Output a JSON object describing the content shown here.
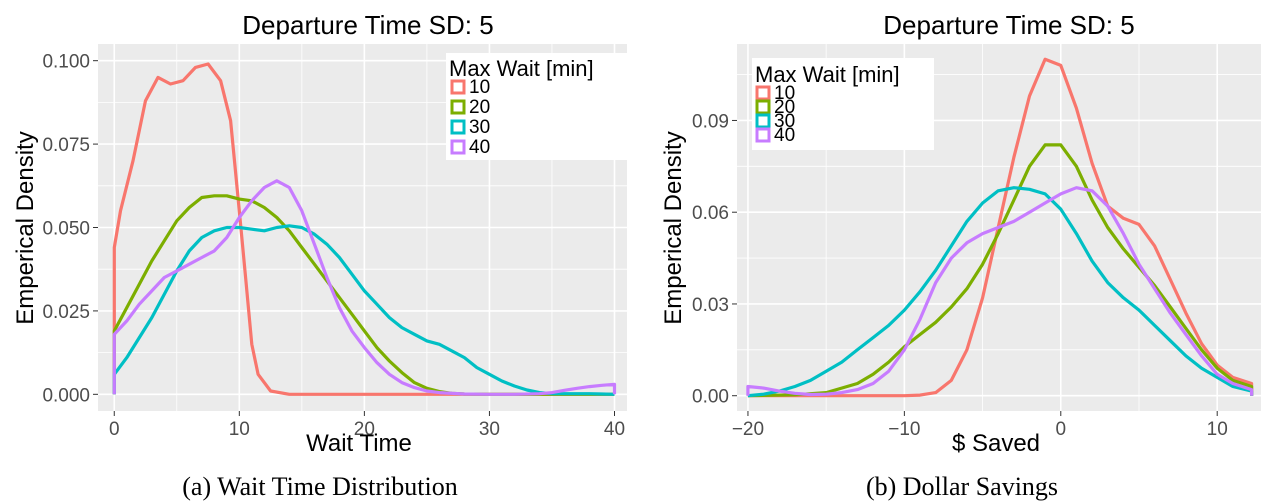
{
  "colors": {
    "10": "#F8766D",
    "20": "#7CAE00",
    "30": "#00BFC4",
    "40": "#C77CFF",
    "panel": "#EBEBEB",
    "grid": "#FFFFFF"
  },
  "chart_data": [
    {
      "type": "line",
      "title": "Departure Time SD: 5",
      "xlabel": "Wait Time",
      "ylabel": "Emperical Density",
      "caption": "(a) Wait Time Distribution",
      "xlim": [
        -1.3,
        41.0
      ],
      "ylim": [
        -0.005,
        0.105
      ],
      "x_ticks": [
        0,
        10,
        20,
        30,
        40
      ],
      "x_tick_labels": [
        "0",
        "10",
        "20",
        "30",
        "40"
      ],
      "y_ticks": [
        0,
        0.025,
        0.05,
        0.075,
        0.1
      ],
      "y_tick_labels": [
        "0.000",
        "0.025",
        "0.050",
        "0.075",
        "0.100"
      ],
      "grid": true,
      "legend": {
        "title": "Max Wait [min]",
        "position": "top-right",
        "labels": [
          "10",
          "20",
          "30",
          "40"
        ]
      },
      "series": [
        {
          "name": "10",
          "x": [
            0,
            0,
            0.5,
            1.5,
            2.5,
            3.5,
            4.5,
            5.5,
            6.5,
            7.5,
            8.5,
            9.3,
            10,
            10.5,
            11,
            11.5,
            12.5,
            14,
            40,
            40
          ],
          "y": [
            0,
            0.044,
            0.055,
            0.07,
            0.088,
            0.095,
            0.093,
            0.094,
            0.098,
            0.099,
            0.094,
            0.082,
            0.055,
            0.035,
            0.015,
            0.006,
            0.001,
            0.0,
            0.0,
            0
          ]
        },
        {
          "name": "20",
          "x": [
            0,
            0,
            1,
            2,
            3,
            4,
            5,
            6,
            7,
            8,
            9,
            10,
            11,
            12,
            13,
            14,
            15,
            16,
            17,
            18,
            19,
            20,
            21,
            22,
            23,
            24,
            25,
            26,
            27,
            28,
            30,
            33,
            40,
            40
          ],
          "y": [
            0,
            0.019,
            0.026,
            0.033,
            0.04,
            0.046,
            0.052,
            0.056,
            0.059,
            0.0595,
            0.0595,
            0.0585,
            0.058,
            0.056,
            0.053,
            0.049,
            0.044,
            0.039,
            0.034,
            0.029,
            0.024,
            0.019,
            0.014,
            0.01,
            0.0065,
            0.0035,
            0.0018,
            0.0008,
            0.0003,
            0.0001,
            0.0,
            0.0,
            0.0,
            0
          ]
        },
        {
          "name": "30",
          "x": [
            0,
            0,
            1,
            2,
            3,
            4,
            5,
            6,
            7,
            8,
            9,
            10,
            11,
            12,
            13,
            14,
            15,
            16,
            17,
            18,
            19,
            20,
            21,
            22,
            23,
            24,
            25,
            26,
            27,
            28,
            29,
            30,
            31,
            32,
            33,
            34,
            35,
            36,
            37,
            38,
            39,
            40,
            40
          ],
          "y": [
            0,
            0.006,
            0.011,
            0.017,
            0.023,
            0.03,
            0.037,
            0.043,
            0.047,
            0.049,
            0.05,
            0.05,
            0.0495,
            0.049,
            0.05,
            0.0505,
            0.05,
            0.048,
            0.045,
            0.041,
            0.036,
            0.031,
            0.027,
            0.023,
            0.02,
            0.018,
            0.016,
            0.015,
            0.013,
            0.011,
            0.008,
            0.006,
            0.004,
            0.0025,
            0.0013,
            0.0005,
            0.0002,
            0.0002,
            0.0002,
            0.0002,
            0.0001,
            0.0,
            0
          ]
        },
        {
          "name": "40",
          "x": [
            0,
            0,
            1,
            2,
            3,
            4,
            5,
            6,
            7,
            8,
            9,
            10,
            11,
            12,
            13,
            14,
            15,
            16,
            17,
            18,
            19,
            20,
            21,
            22,
            23,
            24,
            25,
            26,
            28,
            30,
            32,
            34,
            35,
            36,
            37,
            38,
            39,
            40,
            40
          ],
          "y": [
            0,
            0.018,
            0.022,
            0.027,
            0.031,
            0.035,
            0.037,
            0.039,
            0.041,
            0.043,
            0.047,
            0.053,
            0.058,
            0.062,
            0.064,
            0.062,
            0.055,
            0.045,
            0.035,
            0.026,
            0.019,
            0.014,
            0.0095,
            0.006,
            0.0035,
            0.002,
            0.001,
            0.0005,
            0.0001,
            0.0,
            0.0,
            0.0002,
            0.0005,
            0.0012,
            0.0018,
            0.0023,
            0.0027,
            0.003,
            0
          ]
        }
      ]
    },
    {
      "type": "line",
      "title": "Departure Time SD: 5",
      "xlabel": "$ Saved",
      "ylabel": "Emperical Density",
      "caption": "(b) Dollar Savings",
      "xlim": [
        -20.7,
        12.8
      ],
      "ylim": [
        -0.005,
        0.115
      ],
      "x_ticks": [
        -20,
        -10,
        0,
        10
      ],
      "x_tick_labels": [
        "−20",
        "−10",
        "0",
        "10"
      ],
      "y_ticks": [
        0,
        0.03,
        0.06,
        0.09
      ],
      "y_tick_labels": [
        "0.00",
        "0.03",
        "0.06",
        "0.09"
      ],
      "grid": true,
      "legend": {
        "title": "Max Wait [min]",
        "position": "top-left",
        "labels": [
          "10",
          "20",
          "30",
          "40"
        ]
      },
      "series": [
        {
          "name": "10",
          "x": [
            -20,
            -10,
            -9,
            -8,
            -7,
            -6,
            -5,
            -4,
            -3,
            -2,
            -1,
            0,
            1,
            2,
            3,
            4,
            5,
            6,
            7,
            8,
            9,
            10,
            11,
            12.2,
            12.2
          ],
          "y": [
            0,
            0,
            0.0002,
            0.001,
            0.005,
            0.015,
            0.032,
            0.055,
            0.078,
            0.098,
            0.11,
            0.108,
            0.094,
            0.076,
            0.062,
            0.058,
            0.056,
            0.049,
            0.038,
            0.027,
            0.017,
            0.01,
            0.006,
            0.004,
            0
          ]
        },
        {
          "name": "20",
          "x": [
            -20,
            -17,
            -15,
            -13,
            -12,
            -11,
            -10,
            -9,
            -8,
            -7,
            -6,
            -5,
            -4,
            -3,
            -2,
            -1,
            0,
            1,
            2,
            3,
            4,
            5,
            6,
            7,
            8,
            9,
            10,
            11,
            12.2,
            12.2
          ],
          "y": [
            0,
            0.0003,
            0.001,
            0.004,
            0.007,
            0.011,
            0.016,
            0.02,
            0.024,
            0.029,
            0.035,
            0.043,
            0.053,
            0.064,
            0.075,
            0.082,
            0.082,
            0.075,
            0.064,
            0.055,
            0.048,
            0.042,
            0.036,
            0.029,
            0.022,
            0.015,
            0.009,
            0.005,
            0.003,
            0
          ]
        },
        {
          "name": "30",
          "x": [
            -20,
            -19,
            -18,
            -17,
            -16,
            -15,
            -14,
            -13,
            -12,
            -11,
            -10,
            -9,
            -8,
            -7,
            -6,
            -5,
            -4,
            -3,
            -2,
            -1,
            0,
            1,
            2,
            3,
            4,
            5,
            6,
            7,
            8,
            9,
            10,
            11,
            12.2,
            12.2
          ],
          "y": [
            0,
            0.0005,
            0.0015,
            0.003,
            0.005,
            0.008,
            0.011,
            0.015,
            0.019,
            0.023,
            0.028,
            0.034,
            0.041,
            0.049,
            0.057,
            0.063,
            0.067,
            0.068,
            0.0675,
            0.066,
            0.061,
            0.053,
            0.044,
            0.037,
            0.032,
            0.028,
            0.023,
            0.018,
            0.013,
            0.009,
            0.006,
            0.003,
            0.0015,
            0
          ]
        },
        {
          "name": "40",
          "x": [
            -20,
            -20,
            -19,
            -18,
            -17,
            -16,
            -15,
            -14,
            -13,
            -12,
            -11,
            -10,
            -9,
            -8,
            -7,
            -6,
            -5,
            -4,
            -3,
            -2,
            -1,
            0,
            1,
            2,
            3,
            4,
            5,
            6,
            7,
            8,
            9,
            10,
            11,
            12.2,
            12.2
          ],
          "y": [
            0,
            0.003,
            0.0025,
            0.0015,
            0.0008,
            0.0004,
            0.0005,
            0.001,
            0.002,
            0.004,
            0.008,
            0.015,
            0.025,
            0.037,
            0.045,
            0.05,
            0.053,
            0.055,
            0.057,
            0.06,
            0.063,
            0.066,
            0.068,
            0.067,
            0.062,
            0.053,
            0.043,
            0.035,
            0.027,
            0.02,
            0.013,
            0.007,
            0.004,
            0.002,
            0
          ]
        }
      ]
    }
  ]
}
